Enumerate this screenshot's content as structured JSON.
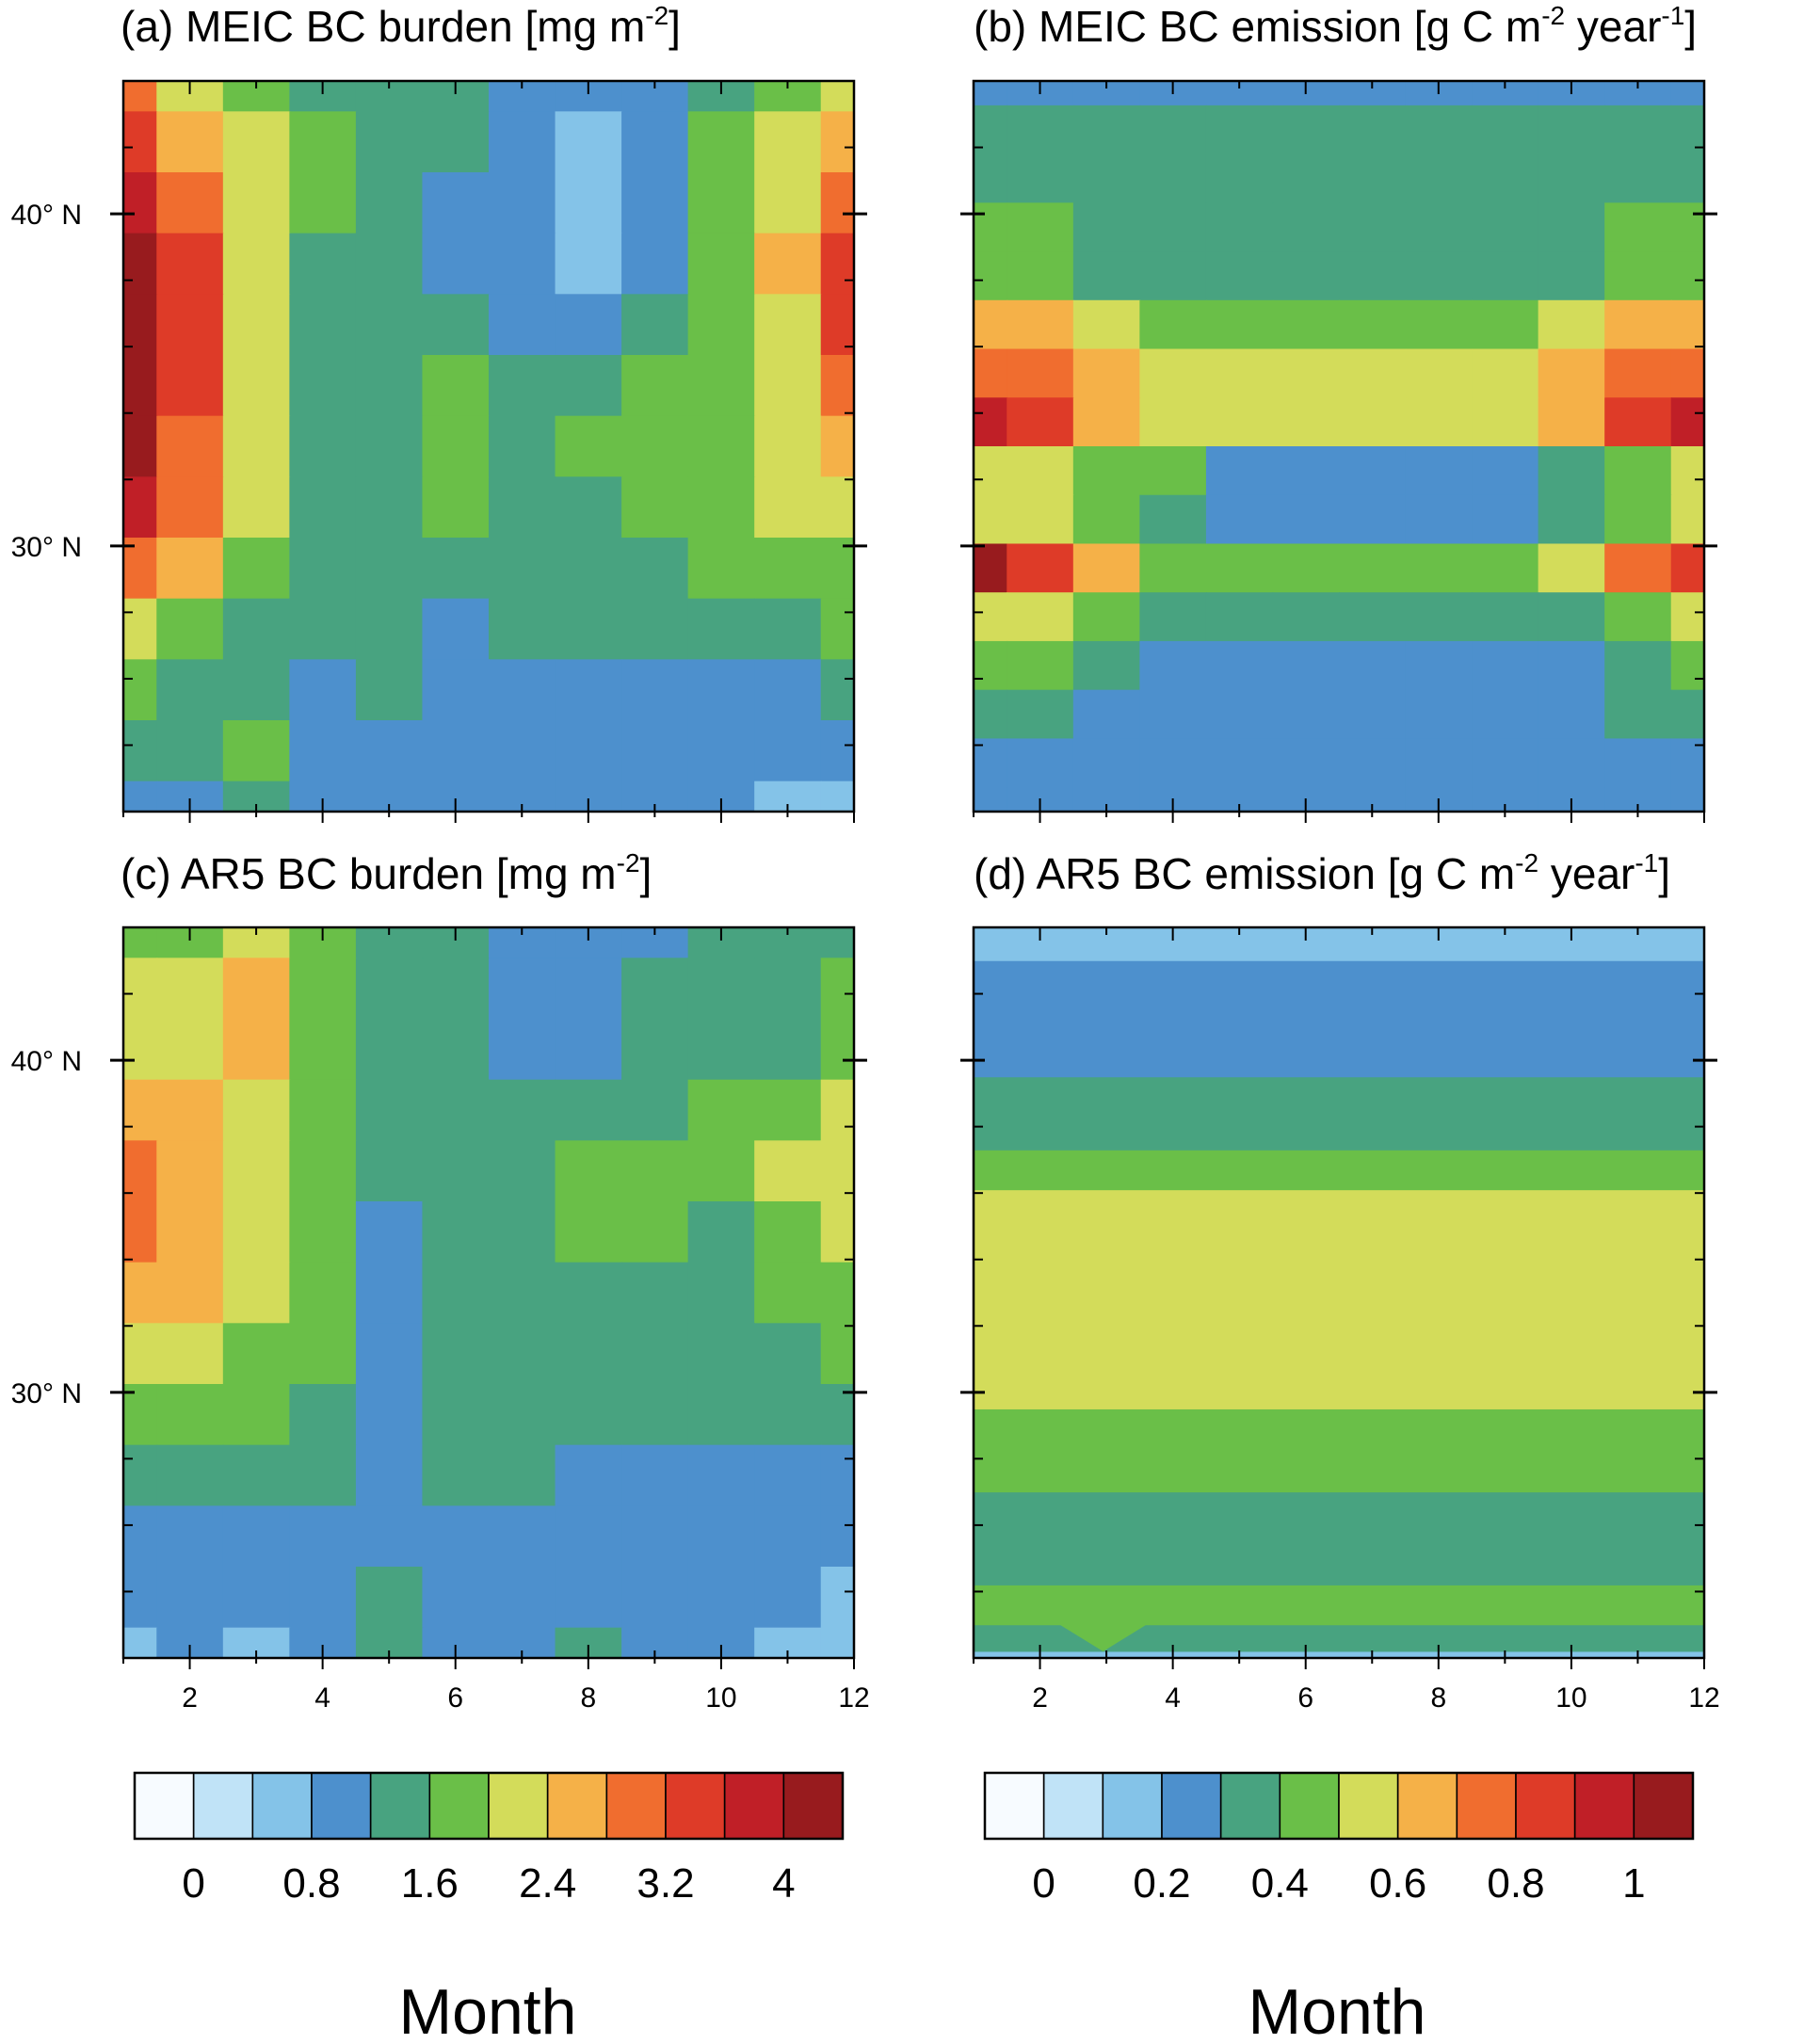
{
  "chart_data": [
    {
      "type": "heatmap",
      "panel": "a",
      "title": "(a) MEIC BC burden [mg m",
      "title_sup": "-2",
      "title_end": "]",
      "x": [
        1,
        2,
        3,
        4,
        5,
        6,
        7,
        8,
        9,
        10,
        11,
        12
      ],
      "xlim": [
        1,
        12
      ],
      "ylim": [
        22,
        44
      ],
      "yticks": [
        "40° N",
        "30° N"
      ],
      "ytick_values": [
        40,
        30
      ],
      "colorbar": "burden",
      "field": [
        [
          8,
          6,
          5,
          4,
          4,
          4,
          3,
          3,
          3,
          4,
          5,
          6
        ],
        [
          9,
          7,
          6,
          5,
          4,
          4,
          3,
          2,
          3,
          5,
          6,
          7
        ],
        [
          10,
          8,
          6,
          5,
          4,
          3,
          3,
          2,
          3,
          5,
          6,
          8
        ],
        [
          11,
          9,
          6,
          4,
          4,
          3,
          3,
          2,
          3,
          5,
          7,
          9
        ],
        [
          11,
          9,
          6,
          4,
          4,
          4,
          3,
          3,
          4,
          5,
          6,
          9
        ],
        [
          11,
          9,
          6,
          4,
          4,
          5,
          4,
          4,
          5,
          5,
          6,
          8
        ],
        [
          11,
          8,
          6,
          4,
          4,
          5,
          4,
          5,
          5,
          5,
          6,
          7
        ],
        [
          10,
          8,
          6,
          4,
          4,
          5,
          4,
          4,
          5,
          5,
          6,
          6
        ],
        [
          8,
          7,
          5,
          4,
          4,
          4,
          4,
          4,
          4,
          5,
          5,
          5
        ],
        [
          6,
          5,
          4,
          4,
          4,
          3,
          4,
          4,
          4,
          4,
          4,
          5
        ],
        [
          5,
          4,
          4,
          3,
          4,
          3,
          3,
          3,
          3,
          3,
          3,
          4
        ],
        [
          4,
          4,
          5,
          3,
          3,
          3,
          3,
          3,
          3,
          3,
          3,
          3
        ],
        [
          3,
          3,
          4,
          3,
          3,
          3,
          3,
          3,
          3,
          3,
          2,
          2
        ]
      ]
    },
    {
      "type": "heatmap",
      "panel": "b",
      "title": "(b) MEIC BC emission [g C m",
      "title_sup": "-2",
      "title_mid": " year",
      "title_sup2": "-1",
      "title_end": "]",
      "x": [
        1,
        2,
        3,
        4,
        5,
        6,
        7,
        8,
        9,
        10,
        11,
        12
      ],
      "xlim": [
        1,
        12
      ],
      "ylim": [
        22,
        44
      ],
      "yticks": [
        "40° N",
        "30° N"
      ],
      "ytick_values": [
        40,
        30
      ],
      "colorbar": "emission",
      "field": [
        [
          3,
          3,
          3,
          3,
          3,
          3,
          3,
          3,
          3,
          3,
          3,
          3
        ],
        [
          4,
          4,
          4,
          4,
          4,
          4,
          4,
          4,
          4,
          4,
          4,
          4
        ],
        [
          4,
          4,
          4,
          4,
          4,
          4,
          4,
          4,
          4,
          4,
          4,
          4
        ],
        [
          5,
          5,
          4,
          4,
          4,
          4,
          4,
          4,
          4,
          4,
          5,
          5
        ],
        [
          5,
          5,
          4,
          4,
          4,
          4,
          4,
          4,
          4,
          4,
          5,
          5
        ],
        [
          7,
          7,
          6,
          5,
          5,
          5,
          5,
          5,
          5,
          6,
          7,
          7
        ],
        [
          8,
          8,
          7,
          6,
          6,
          6,
          6,
          6,
          6,
          7,
          8,
          8
        ],
        [
          10,
          9,
          7,
          6,
          6,
          6,
          6,
          6,
          6,
          7,
          9,
          10
        ],
        [
          6,
          6,
          5,
          5,
          3,
          3,
          3,
          3,
          3,
          4,
          5,
          6
        ],
        [
          6,
          6,
          5,
          4,
          3,
          3,
          3,
          3,
          3,
          4,
          5,
          6
        ],
        [
          11,
          9,
          7,
          5,
          5,
          5,
          5,
          5,
          5,
          6,
          8,
          9
        ],
        [
          6,
          6,
          5,
          4,
          4,
          4,
          4,
          4,
          4,
          4,
          5,
          6
        ],
        [
          5,
          5,
          4,
          3,
          3,
          3,
          3,
          3,
          3,
          3,
          4,
          5
        ],
        [
          4,
          4,
          3,
          3,
          3,
          3,
          3,
          3,
          3,
          3,
          4,
          4
        ],
        [
          3,
          3,
          3,
          3,
          3,
          3,
          3,
          3,
          3,
          3,
          3,
          3
        ],
        [
          3,
          3,
          3,
          3,
          3,
          3,
          3,
          3,
          3,
          3,
          3,
          3
        ]
      ]
    },
    {
      "type": "heatmap",
      "panel": "c",
      "title": "(c) AR5 BC burden [mg m",
      "title_sup": "-2",
      "title_end": "]",
      "x": [
        1,
        2,
        3,
        4,
        5,
        6,
        7,
        8,
        9,
        10,
        11,
        12
      ],
      "xlim": [
        1,
        12
      ],
      "ylim": [
        22,
        44
      ],
      "yticks": [
        "40° N",
        "30° N"
      ],
      "ytick_values": [
        40,
        30
      ],
      "xticks": [
        2,
        4,
        6,
        8,
        10,
        12
      ],
      "colorbar": "burden",
      "field": [
        [
          5,
          5,
          6,
          5,
          4,
          4,
          3,
          3,
          3,
          4,
          4,
          4
        ],
        [
          6,
          6,
          7,
          5,
          4,
          4,
          3,
          3,
          4,
          4,
          4,
          5
        ],
        [
          6,
          6,
          7,
          5,
          4,
          4,
          3,
          3,
          4,
          4,
          4,
          5
        ],
        [
          7,
          7,
          6,
          5,
          4,
          4,
          4,
          4,
          4,
          5,
          5,
          6
        ],
        [
          8,
          7,
          6,
          5,
          4,
          4,
          4,
          5,
          5,
          5,
          6,
          6
        ],
        [
          8,
          7,
          6,
          5,
          3,
          4,
          4,
          5,
          5,
          4,
          5,
          6
        ],
        [
          7,
          7,
          6,
          5,
          3,
          4,
          4,
          4,
          4,
          4,
          5,
          5
        ],
        [
          6,
          6,
          5,
          5,
          3,
          4,
          4,
          4,
          4,
          4,
          4,
          5
        ],
        [
          5,
          5,
          5,
          4,
          3,
          4,
          4,
          4,
          4,
          4,
          4,
          4
        ],
        [
          4,
          4,
          4,
          4,
          3,
          4,
          4,
          3,
          3,
          3,
          3,
          3
        ],
        [
          3,
          3,
          3,
          3,
          3,
          3,
          3,
          3,
          3,
          3,
          3,
          3
        ],
        [
          3,
          3,
          3,
          3,
          4,
          3,
          3,
          3,
          3,
          3,
          3,
          2
        ],
        [
          2,
          3,
          2,
          3,
          4,
          3,
          3,
          4,
          3,
          3,
          2,
          2
        ]
      ]
    },
    {
      "type": "heatmap",
      "panel": "d",
      "title": "(d) AR5 BC emission [g C m",
      "title_sup": "-2",
      "title_mid": " year",
      "title_sup2": "-1",
      "title_end": "]",
      "x": [
        1,
        2,
        3,
        4,
        5,
        6,
        7,
        8,
        9,
        10,
        11,
        12
      ],
      "xlim": [
        1,
        12
      ],
      "ylim": [
        22,
        44
      ],
      "yticks": [
        "40° N",
        "30° N"
      ],
      "ytick_values": [
        40,
        30
      ],
      "xticks": [
        2,
        4,
        6,
        8,
        10,
        12
      ],
      "colorbar": "emission",
      "bands": [
        {
          "y0": 22.0,
          "y1": 22.2,
          "level": 2
        },
        {
          "y0": 22.2,
          "y1": 23.0,
          "level": 4
        },
        {
          "y0": 23.0,
          "y1": 24.2,
          "level": 5
        },
        {
          "y0": 24.2,
          "y1": 27.0,
          "level": 4
        },
        {
          "y0": 27.0,
          "y1": 29.5,
          "level": 5
        },
        {
          "y0": 29.5,
          "y1": 36.1,
          "level": 6
        },
        {
          "y0": 36.1,
          "y1": 37.3,
          "level": 5
        },
        {
          "y0": 37.3,
          "y1": 39.5,
          "level": 4
        },
        {
          "y0": 39.5,
          "y1": 43.0,
          "level": 3
        },
        {
          "y0": 43.0,
          "y1": 44.0,
          "level": 2
        }
      ],
      "bottom_patches": [
        {
          "x0": 2.3,
          "x1": 3.6,
          "y0": 22.2,
          "y1": 23.0,
          "level": 5
        }
      ]
    }
  ],
  "colormap": [
    "#f7fbff",
    "#c0e3f7",
    "#84c3e8",
    "#4d90cd",
    "#48a380",
    "#6abf48",
    "#d3dc5a",
    "#f5b148",
    "#f06d2f",
    "#de3b28",
    "#c01f27",
    "#981b1e"
  ],
  "colorbars": {
    "burden": {
      "labels": [
        "0",
        "0.8",
        "1.6",
        "2.4",
        "3.2",
        "4"
      ]
    },
    "emission": {
      "labels": [
        "0",
        "0.2",
        "0.4",
        "0.6",
        "0.8",
        "1"
      ]
    }
  },
  "xlabel": "Month"
}
